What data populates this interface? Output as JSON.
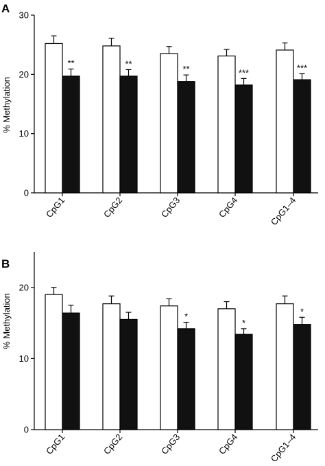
{
  "chart_data": [
    {
      "type": "bar",
      "panel": "A",
      "ylabel": "% Methylation",
      "ylim": [
        0,
        30
      ],
      "yticks": [
        0,
        10,
        20,
        30
      ],
      "categories": [
        "CpG1",
        "CpG2",
        "CpG3",
        "CpG4",
        "CpG1–4"
      ],
      "series": [
        {
          "color": "#ffffff",
          "values": [
            25.2,
            24.8,
            23.5,
            23.1,
            24.1
          ],
          "errors": [
            1.3,
            1.3,
            1.2,
            1.1,
            1.2
          ]
        },
        {
          "color": "#111111",
          "values": [
            19.7,
            19.7,
            18.8,
            18.2,
            19.1
          ],
          "errors": [
            1.2,
            1.1,
            1.1,
            1.1,
            1.0
          ]
        }
      ],
      "significance": [
        "**",
        "**",
        "**",
        "***",
        "***"
      ]
    },
    {
      "type": "bar",
      "panel": "B",
      "ylabel": "% Methylation",
      "ylim": [
        0,
        25
      ],
      "yticks": [
        0,
        10,
        20
      ],
      "categories": [
        "CpG1",
        "CpG2",
        "CpG3",
        "CpG4",
        "CpG1–4"
      ],
      "series": [
        {
          "color": "#ffffff",
          "values": [
            19.0,
            17.7,
            17.4,
            17.0,
            17.7
          ],
          "errors": [
            1.0,
            1.1,
            1.0,
            1.0,
            1.1
          ]
        },
        {
          "color": "#111111",
          "values": [
            16.4,
            15.5,
            14.2,
            13.4,
            14.8
          ],
          "errors": [
            1.1,
            1.0,
            0.9,
            0.8,
            1.0
          ]
        }
      ],
      "significance": [
        "",
        "",
        "*",
        "*",
        "*"
      ]
    }
  ]
}
